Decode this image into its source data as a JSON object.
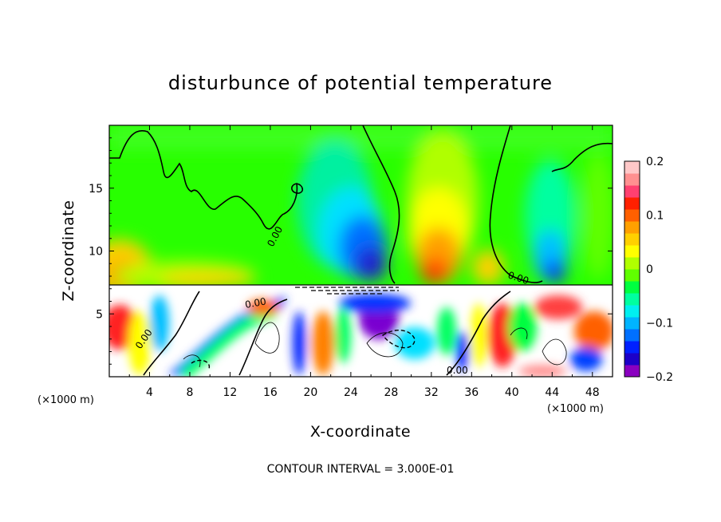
{
  "chart_data": {
    "type": "heatmap",
    "title": "disturbunce of potential temperature",
    "xlabel": "X-coordinate",
    "ylabel": "Z-coordinate",
    "x_unit": "(×1000 m)",
    "xlim": [
      0,
      50
    ],
    "ylim": [
      0,
      20
    ],
    "x_ticks": [
      4,
      8,
      12,
      16,
      20,
      24,
      28,
      32,
      36,
      40,
      44,
      48
    ],
    "y_ticks": [
      5,
      10,
      15
    ],
    "colorbar": {
      "range": [
        -0.2,
        0.2
      ],
      "ticks": [
        {
          "value": 0.2,
          "label": "0.2"
        },
        {
          "value": 0.1,
          "label": "0.1"
        },
        {
          "value": 0,
          "label": "0"
        },
        {
          "value": -0.1,
          "label": "−0.1"
        },
        {
          "value": -0.2,
          "label": "−0.2"
        }
      ],
      "colors": [
        "#8a00c0",
        "#1c00c8",
        "#0020ff",
        "#0070ff",
        "#00b4ff",
        "#00f0f0",
        "#00ffa0",
        "#00ff40",
        "#60ff00",
        "#b0ff00",
        "#ffff00",
        "#ffd000",
        "#ffa000",
        "#ff6000",
        "#ff2000",
        "#ff4070",
        "#ff9090",
        "#ffc8c8"
      ]
    },
    "contour_interval_text": "CONTOUR INTERVAL = 3.000E-01",
    "contour_labels": [
      "0.00",
      "0.00",
      "0.00",
      "0.00",
      "0.00"
    ],
    "boundary_height": 7.3
  }
}
